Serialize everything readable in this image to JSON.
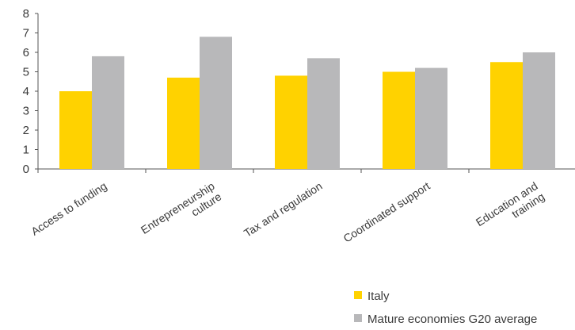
{
  "chart_data": {
    "type": "bar",
    "categories": [
      [
        "Access to funding"
      ],
      [
        "Entrepreneurship",
        "culture"
      ],
      [
        "Tax and regulation"
      ],
      [
        "Coordinated support"
      ],
      [
        "Education and",
        "training"
      ]
    ],
    "series": [
      {
        "name": "Italy",
        "color": "#ffd200",
        "values": [
          4.0,
          4.7,
          4.8,
          5.0,
          5.5
        ]
      },
      {
        "name": "Mature economies G20 average",
        "color": "#b8b8ba",
        "values": [
          5.8,
          6.8,
          5.7,
          5.2,
          6.0
        ]
      }
    ],
    "ylim": [
      0,
      8
    ],
    "yticks": [
      "0",
      "1",
      "2",
      "3",
      "4",
      "5",
      "6",
      "7",
      "8"
    ],
    "grid": false,
    "legend_position": "bottom-right"
  }
}
